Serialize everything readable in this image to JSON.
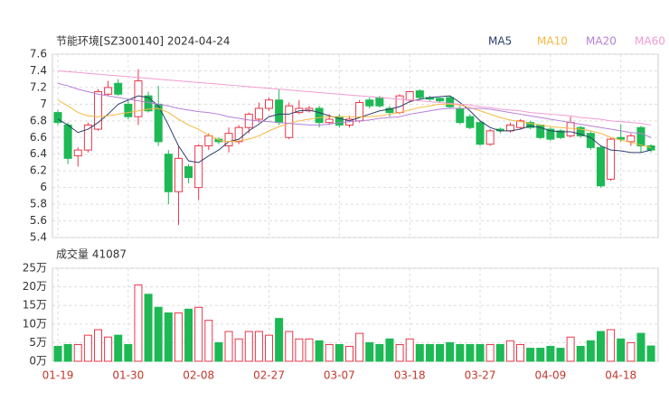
{
  "chart_data": [
    {
      "type": "candlestick",
      "title": "节能环境[SZ300140] 2024-04-24",
      "ylim": [
        5.4,
        7.6
      ],
      "yticks": [
        7.6,
        7.4,
        7.2,
        7,
        6.8,
        6.6,
        6.4,
        6.2,
        6,
        5.8,
        5.6,
        5.4
      ],
      "grid": true,
      "up_color": "#e8374a",
      "down_color": "#1db954",
      "open": [
        6.9,
        6.75,
        6.38,
        6.45,
        6.7,
        7.12,
        7.25,
        7.0,
        6.85,
        7.1,
        7.0,
        6.4,
        5.95,
        6.25,
        6.0,
        6.5,
        6.58,
        6.5,
        6.55,
        6.72,
        6.82,
        6.95,
        7.05,
        6.6,
        6.9,
        6.92,
        6.95,
        6.78,
        6.85,
        6.75,
        6.8,
        7.05,
        7.08,
        6.95,
        6.9,
        7.05,
        7.16,
        7.08,
        7.07,
        7.08,
        6.95,
        6.85,
        6.78,
        6.52,
        6.7,
        6.68,
        6.72,
        6.78,
        6.75,
        6.7,
        6.68,
        6.62,
        6.72,
        6.65,
        6.48,
        6.1,
        6.6,
        6.55,
        6.72,
        6.5
      ],
      "high": [
        6.93,
        6.78,
        6.48,
        6.78,
        7.18,
        7.28,
        7.3,
        7.05,
        7.42,
        7.15,
        7.22,
        6.45,
        6.5,
        6.28,
        6.52,
        6.65,
        6.6,
        6.72,
        6.75,
        6.9,
        7.02,
        7.08,
        7.18,
        7.02,
        7.05,
        6.98,
        6.98,
        6.88,
        6.88,
        6.86,
        7.05,
        7.08,
        7.1,
        6.98,
        7.12,
        7.16,
        7.18,
        7.1,
        7.08,
        7.1,
        6.98,
        6.88,
        6.8,
        6.7,
        6.72,
        6.78,
        6.82,
        6.8,
        6.76,
        6.72,
        6.7,
        6.85,
        6.74,
        6.68,
        6.5,
        6.6,
        6.76,
        6.65,
        6.74,
        6.52
      ],
      "low": [
        6.75,
        6.28,
        6.25,
        6.42,
        6.68,
        7.1,
        7.1,
        6.82,
        6.75,
        6.9,
        6.5,
        5.8,
        5.55,
        6.05,
        5.85,
        6.45,
        6.52,
        6.42,
        6.52,
        6.65,
        6.78,
        6.92,
        6.75,
        6.58,
        6.88,
        6.9,
        6.72,
        6.75,
        6.72,
        6.72,
        6.78,
        6.95,
        6.96,
        6.85,
        6.88,
        7.02,
        7.05,
        7.04,
        7.02,
        6.95,
        6.76,
        6.7,
        6.5,
        6.5,
        6.65,
        6.66,
        6.7,
        6.7,
        6.58,
        6.56,
        6.58,
        6.6,
        6.6,
        6.45,
        6.0,
        6.08,
        6.55,
        6.5,
        6.42,
        6.42
      ],
      "close": [
        6.78,
        6.35,
        6.45,
        6.75,
        7.15,
        7.2,
        7.12,
        6.85,
        7.28,
        6.92,
        6.55,
        5.95,
        6.35,
        6.12,
        6.5,
        6.62,
        6.55,
        6.65,
        6.72,
        6.88,
        6.95,
        7.05,
        6.78,
        6.98,
        6.95,
        6.95,
        6.78,
        6.82,
        6.75,
        6.82,
        7.02,
        6.98,
        6.98,
        6.9,
        7.1,
        7.15,
        7.08,
        7.06,
        7.04,
        6.97,
        6.78,
        6.72,
        6.52,
        6.68,
        6.68,
        6.75,
        6.8,
        6.72,
        6.6,
        6.58,
        6.6,
        6.78,
        6.62,
        6.48,
        6.02,
        6.58,
        6.58,
        6.62,
        6.5,
        6.45
      ],
      "series": [
        {
          "name": "MA5",
          "color": "#2c3e6e",
          "values": [
            6.82,
            6.75,
            6.66,
            6.7,
            6.78,
            6.88,
            7.0,
            7.05,
            7.1,
            7.08,
            6.98,
            6.75,
            6.5,
            6.32,
            6.3,
            6.38,
            6.45,
            6.55,
            6.58,
            6.68,
            6.76,
            6.85,
            6.88,
            6.88,
            6.92,
            6.93,
            6.9,
            6.86,
            6.83,
            6.8,
            6.84,
            6.88,
            6.92,
            6.94,
            6.97,
            7.03,
            7.06,
            7.08,
            7.09,
            7.1,
            7.02,
            6.92,
            6.8,
            6.72,
            6.68,
            6.68,
            6.7,
            6.74,
            6.72,
            6.68,
            6.67,
            6.67,
            6.64,
            6.6,
            6.5,
            6.45,
            6.44,
            6.42,
            6.42,
            6.45
          ]
        },
        {
          "name": "MA10",
          "color": "#f5b942",
          "values": [
            7.05,
            6.98,
            6.9,
            6.86,
            6.85,
            6.86,
            6.88,
            6.9,
            6.92,
            6.94,
            6.95,
            6.9,
            6.82,
            6.75,
            6.7,
            6.63,
            6.57,
            6.55,
            6.56,
            6.58,
            6.62,
            6.68,
            6.73,
            6.77,
            6.8,
            6.82,
            6.84,
            6.85,
            6.85,
            6.85,
            6.85,
            6.85,
            6.86,
            6.88,
            6.9,
            6.93,
            6.96,
            6.98,
            7.0,
            7.0,
            6.99,
            6.96,
            6.92,
            6.88,
            6.84,
            6.81,
            6.79,
            6.77,
            6.75,
            6.73,
            6.72,
            6.71,
            6.7,
            6.68,
            6.65,
            6.6,
            6.57,
            6.54,
            6.51,
            6.48
          ]
        },
        {
          "name": "MA20",
          "color": "#b57fd6",
          "values": [
            7.25,
            7.22,
            7.18,
            7.15,
            7.12,
            7.1,
            7.08,
            7.06,
            7.04,
            7.02,
            7.0,
            6.98,
            6.95,
            6.93,
            6.91,
            6.9,
            6.88,
            6.85,
            6.83,
            6.81,
            6.8,
            6.79,
            6.78,
            6.77,
            6.76,
            6.75,
            6.75,
            6.76,
            6.78,
            6.79,
            6.8,
            6.81,
            6.83,
            6.84,
            6.85,
            6.88,
            6.9,
            6.92,
            6.94,
            6.95,
            6.95,
            6.95,
            6.95,
            6.94,
            6.92,
            6.9,
            6.88,
            6.86,
            6.84,
            6.82,
            6.8,
            6.78,
            6.76,
            6.74,
            6.72,
            6.7,
            6.68,
            6.66,
            6.65,
            6.6
          ]
        },
        {
          "name": "MA60",
          "color": "#f29bd0",
          "values": [
            7.4,
            7.39,
            7.38,
            7.37,
            7.36,
            7.35,
            7.34,
            7.33,
            7.32,
            7.31,
            7.3,
            7.29,
            7.28,
            7.27,
            7.26,
            7.25,
            7.24,
            7.23,
            7.22,
            7.21,
            7.2,
            7.19,
            7.18,
            7.17,
            7.16,
            7.15,
            7.14,
            7.13,
            7.12,
            7.11,
            7.1,
            7.09,
            7.08,
            7.07,
            7.06,
            7.05,
            7.04,
            7.03,
            7.02,
            7.01,
            7.0,
            6.99,
            6.97,
            6.96,
            6.94,
            6.93,
            6.92,
            6.9,
            6.89,
            6.88,
            6.87,
            6.86,
            6.84,
            6.83,
            6.82,
            6.8,
            6.79,
            6.78,
            6.77,
            6.75
          ]
        }
      ]
    },
    {
      "type": "bar",
      "title": "成交量 41087",
      "categories": [
        "01-19",
        null,
        null,
        null,
        null,
        null,
        null,
        "01-30",
        null,
        null,
        null,
        null,
        null,
        null,
        "02-08",
        null,
        null,
        null,
        null,
        null,
        null,
        "02-27",
        null,
        null,
        null,
        null,
        null,
        null,
        "03-07",
        null,
        null,
        null,
        null,
        null,
        null,
        "03-18",
        null,
        null,
        null,
        null,
        null,
        null,
        "03-27",
        null,
        null,
        null,
        null,
        null,
        null,
        "04-09",
        null,
        null,
        null,
        null,
        null,
        null,
        "04-18",
        null,
        null,
        null
      ],
      "values": [
        4,
        4.5,
        4.5,
        7,
        8.5,
        6.5,
        7,
        4.5,
        20.5,
        18,
        14.5,
        13,
        13,
        14,
        14.5,
        11,
        5,
        8,
        6,
        8,
        8,
        7,
        11.5,
        8,
        6,
        6,
        5.5,
        4.5,
        4.5,
        4,
        7.5,
        5,
        4.5,
        6,
        4.5,
        6,
        4.5,
        4.5,
        4.5,
        5,
        4.5,
        4.5,
        4.5,
        4.5,
        4.5,
        5.5,
        4.5,
        3.5,
        3.5,
        4,
        3.5,
        6.5,
        4,
        5.5,
        8,
        8.5,
        6,
        5,
        7.5,
        4.1087
      ],
      "ylim": [
        0,
        25
      ],
      "yticks": [
        {
          "value": 25,
          "label": "25万"
        },
        {
          "value": 20,
          "label": "20万"
        },
        {
          "value": 15,
          "label": "15万"
        },
        {
          "value": 10,
          "label": "10万"
        },
        {
          "value": 5,
          "label": "5万"
        },
        {
          "value": 0,
          "label": "0万"
        }
      ],
      "grid": true
    }
  ]
}
